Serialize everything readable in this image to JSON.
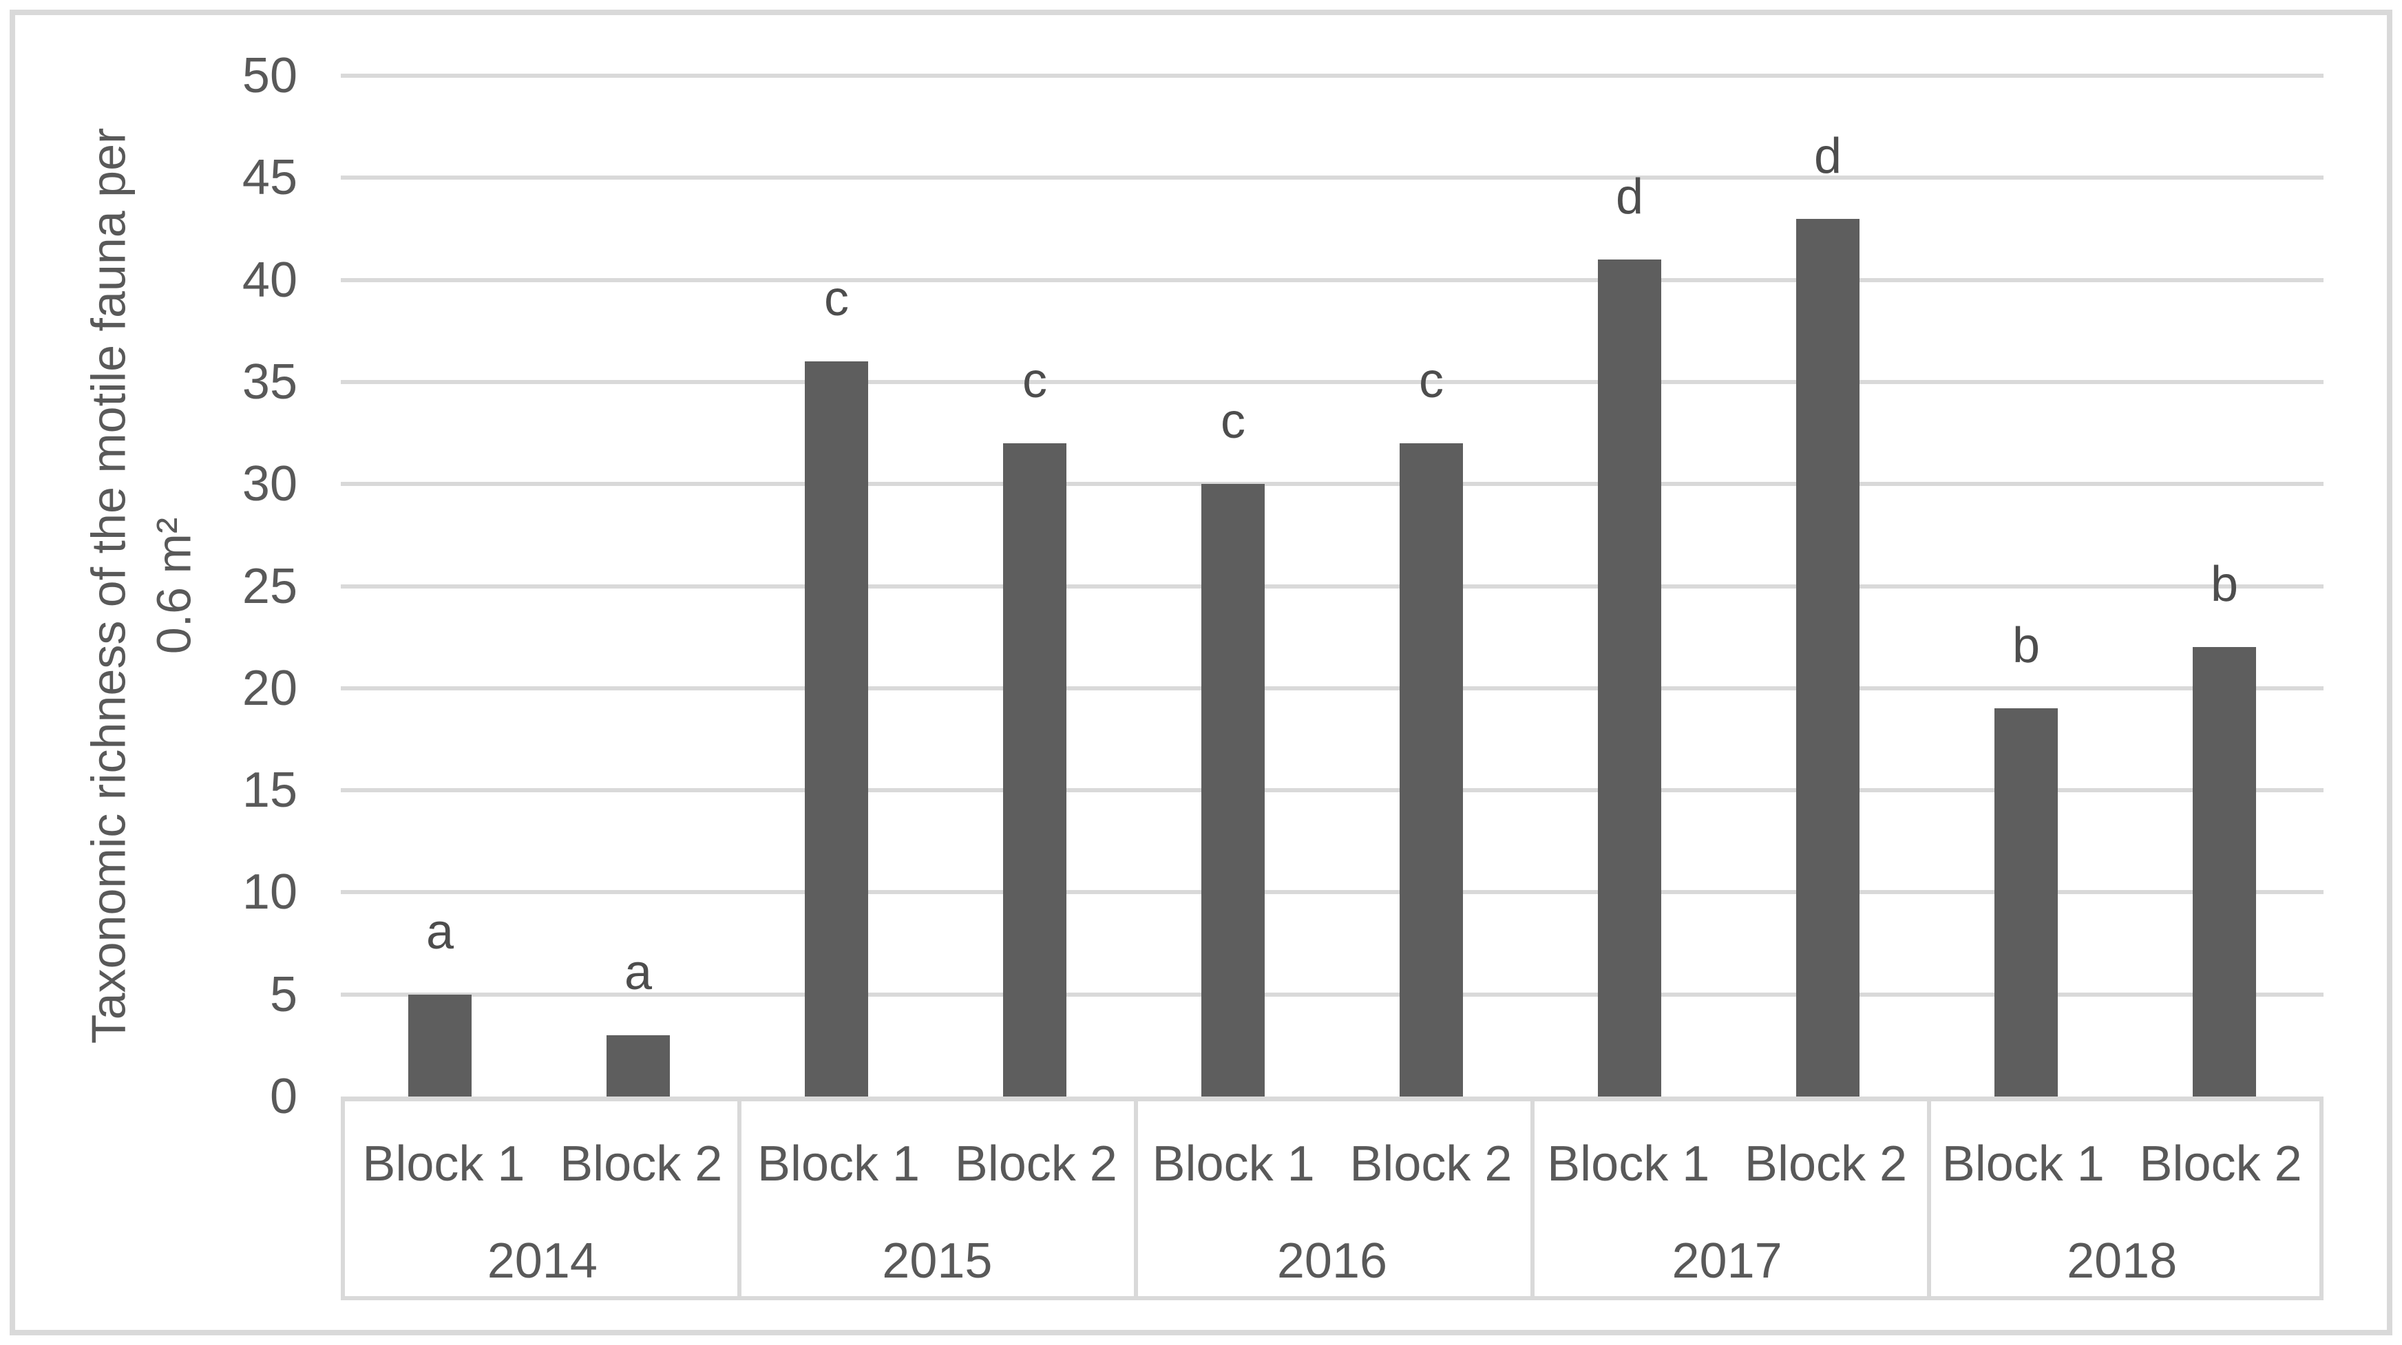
{
  "chart_data": {
    "type": "bar",
    "title": "",
    "ylabel_line1": "Taxonomic richness of the motile fauna per",
    "ylabel_line2": "0.6 m²",
    "xlabel": "",
    "ylim": [
      0,
      50
    ],
    "ytick_step": 5,
    "ytick_labels": [
      "0",
      "5",
      "10",
      "15",
      "20",
      "25",
      "30",
      "35",
      "40",
      "45",
      "50"
    ],
    "grid": true,
    "legend": "none",
    "bar_color": "#5E5E5E",
    "gridline_color": "#D9D9D9",
    "text_color": "#595959",
    "categories": [
      "2014",
      "2015",
      "2016",
      "2017",
      "2018"
    ],
    "series": [
      {
        "name": "Block 1",
        "values": [
          5,
          36,
          30,
          41,
          19
        ]
      },
      {
        "name": "Block 2",
        "values": [
          3,
          32,
          32,
          43,
          22
        ]
      }
    ],
    "groups": [
      {
        "year": "2014",
        "bars": [
          {
            "block": "Block 1",
            "value": 5,
            "letter": "a"
          },
          {
            "block": "Block 2",
            "value": 3,
            "letter": "a"
          }
        ]
      },
      {
        "year": "2015",
        "bars": [
          {
            "block": "Block 1",
            "value": 36,
            "letter": "c"
          },
          {
            "block": "Block 2",
            "value": 32,
            "letter": "c"
          }
        ]
      },
      {
        "year": "2016",
        "bars": [
          {
            "block": "Block 1",
            "value": 30,
            "letter": "c"
          },
          {
            "block": "Block 2",
            "value": 32,
            "letter": "c"
          }
        ]
      },
      {
        "year": "2017",
        "bars": [
          {
            "block": "Block 1",
            "value": 41,
            "letter": "d"
          },
          {
            "block": "Block 2",
            "value": 43,
            "letter": "d"
          }
        ]
      },
      {
        "year": "2018",
        "bars": [
          {
            "block": "Block 1",
            "value": 19,
            "letter": "b"
          },
          {
            "block": "Block 2",
            "value": 22,
            "letter": "b"
          }
        ]
      }
    ]
  }
}
